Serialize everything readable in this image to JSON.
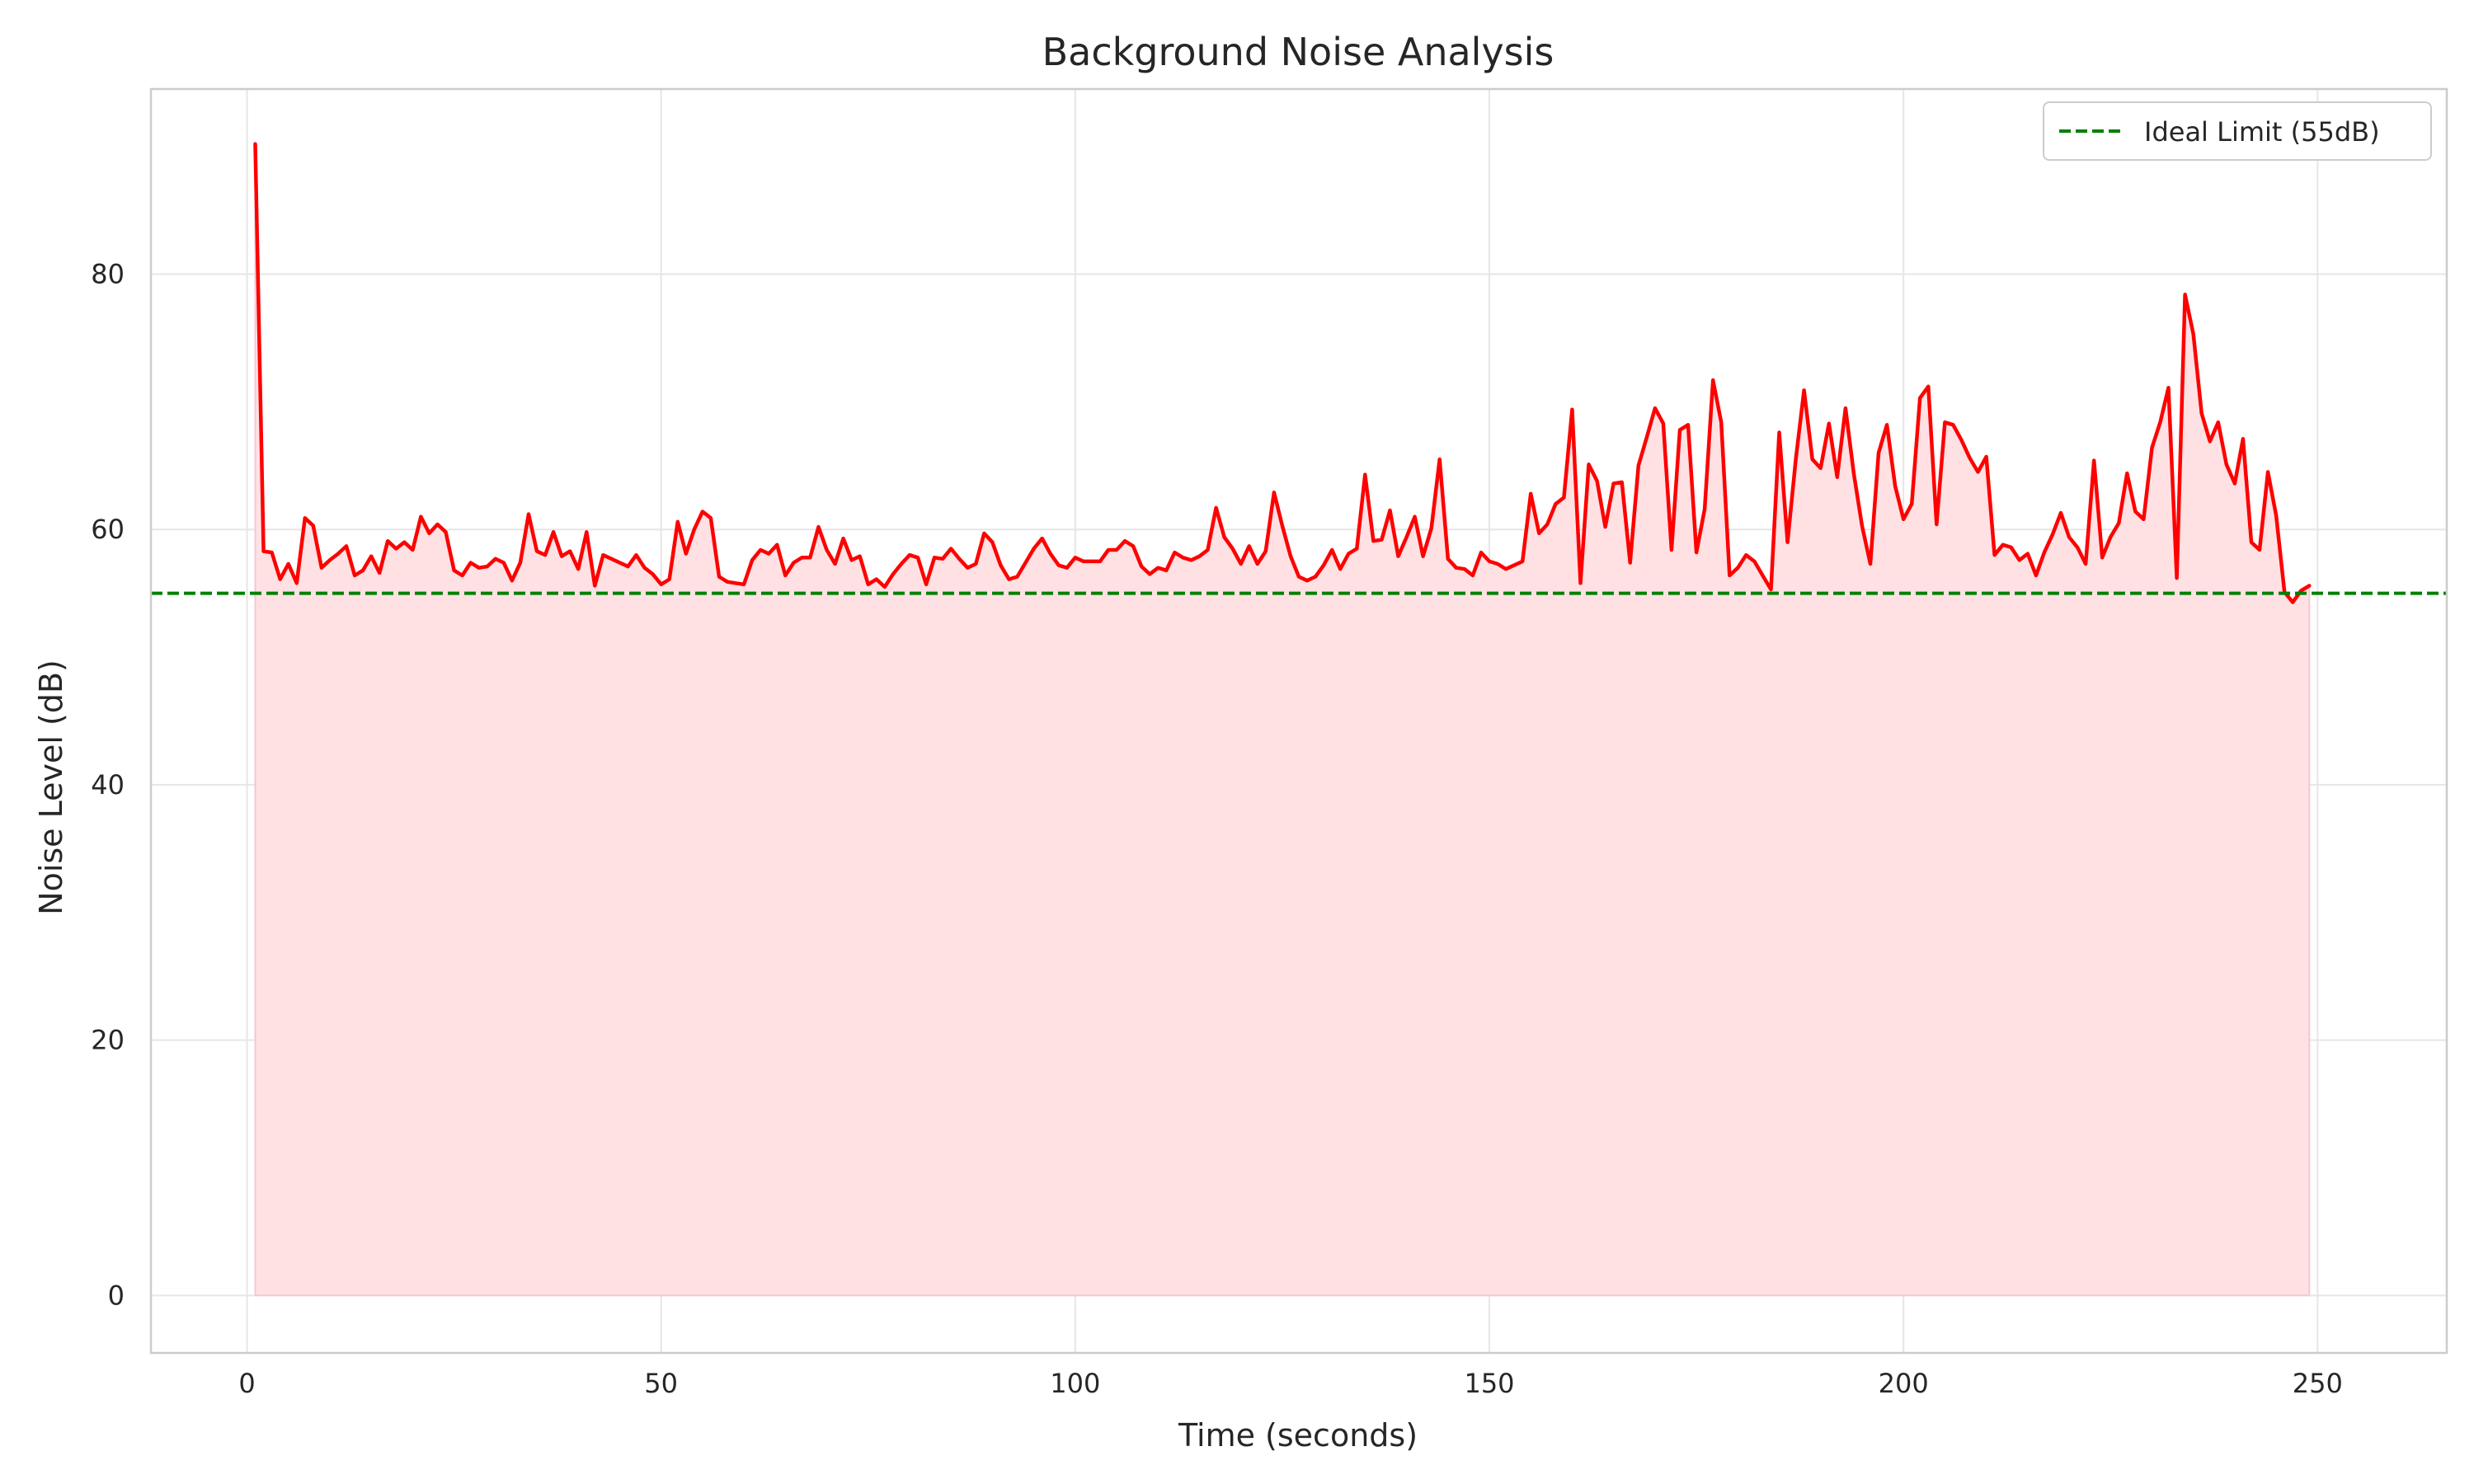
{
  "chart_data": {
    "type": "line",
    "title": "Background Noise Analysis",
    "xlabel": "Time (seconds)",
    "ylabel": "Noise Level (dB)",
    "xlim": [
      -11.6,
      265.6
    ],
    "ylim": [
      -4.5,
      94.5
    ],
    "x_ticks": [
      0,
      50,
      100,
      150,
      200,
      250
    ],
    "y_ticks": [
      0,
      20,
      40,
      60,
      80
    ],
    "grid": true,
    "legend_position": "top-right",
    "colors": {
      "series": "#ff0000",
      "fill": "#ffe1e4",
      "threshold": "#008000"
    },
    "series": [
      {
        "x_start": 1,
        "x_step": 1,
        "fill_to_zero": true,
        "values": [
          90.2,
          58.3,
          58.2,
          56.1,
          57.3,
          55.8,
          60.9,
          60.3,
          57.0,
          57.6,
          58.1,
          58.7,
          56.4,
          56.8,
          57.9,
          56.6,
          59.1,
          58.5,
          59.0,
          58.4,
          61.0,
          59.7,
          60.4,
          59.8,
          56.8,
          56.4,
          57.4,
          57.0,
          57.1,
          57.7,
          57.4,
          56.0,
          57.4,
          61.2,
          58.3,
          58.0,
          59.8,
          57.9,
          58.3,
          56.9,
          59.8,
          55.6,
          58.0,
          57.7,
          57.4,
          57.1,
          58.0,
          57.0,
          56.5,
          55.7,
          56.1,
          60.6,
          58.1,
          60.0,
          61.4,
          60.9,
          56.3,
          55.9,
          55.8,
          55.7,
          57.6,
          58.4,
          58.1,
          58.8,
          56.4,
          57.4,
          57.8,
          57.8,
          60.2,
          58.4,
          57.3,
          59.3,
          57.6,
          57.9,
          55.7,
          56.1,
          55.5,
          56.5,
          57.3,
          58.0,
          57.8,
          55.7,
          57.8,
          57.7,
          58.5,
          57.7,
          57.0,
          57.3,
          59.7,
          59.0,
          57.2,
          56.1,
          56.3,
          57.4,
          58.5,
          59.3,
          58.1,
          57.2,
          57.0,
          57.8,
          57.5,
          57.5,
          57.5,
          58.4,
          58.4,
          59.1,
          58.7,
          57.1,
          56.5,
          57.0,
          56.8,
          58.2,
          57.8,
          57.6,
          57.9,
          58.4,
          61.7,
          59.4,
          58.5,
          57.3,
          58.7,
          57.3,
          58.3,
          62.9,
          60.3,
          57.9,
          56.3,
          56.0,
          56.3,
          57.2,
          58.4,
          56.9,
          58.1,
          58.5,
          64.3,
          59.1,
          59.2,
          61.5,
          57.9,
          59.4,
          61.0,
          57.9,
          60.1,
          65.5,
          57.7,
          57.0,
          56.9,
          56.4,
          58.2,
          57.5,
          57.3,
          56.9,
          57.2,
          57.5,
          62.8,
          59.7,
          60.4,
          62.0,
          62.5,
          69.4,
          55.8,
          65.1,
          63.8,
          60.2,
          63.6,
          63.7,
          57.4,
          65.0,
          67.2,
          69.5,
          68.3,
          58.4,
          67.8,
          68.2,
          58.2,
          61.6,
          71.7,
          68.4,
          56.4,
          57.0,
          58.0,
          57.5,
          56.4,
          55.3,
          67.6,
          59.0,
          65.5,
          70.9,
          65.5,
          64.8,
          68.3,
          64.1,
          69.5,
          64.4,
          60.3,
          57.3,
          66.0,
          68.2,
          63.4,
          60.8,
          62.0,
          70.3,
          71.2,
          60.4,
          68.4,
          68.2,
          67.0,
          65.6,
          64.5,
          65.7,
          58.0,
          58.8,
          58.6,
          57.6,
          58.1,
          56.4,
          58.2,
          59.6,
          61.3,
          59.4,
          58.6,
          57.3,
          65.4,
          57.8,
          59.4,
          60.5,
          64.4,
          61.4,
          60.8,
          66.4,
          68.4,
          71.1,
          56.2,
          78.4,
          75.3,
          69.1,
          66.9,
          68.4,
          65.1,
          63.6,
          67.1,
          59.0,
          58.4,
          64.5,
          61.1,
          55.1,
          54.3,
          55.2,
          55.6
        ]
      }
    ],
    "reference_lines": [
      {
        "orientation": "horizontal",
        "y": 55,
        "style": "dashed",
        "label": "Ideal Limit (55dB)"
      }
    ]
  }
}
